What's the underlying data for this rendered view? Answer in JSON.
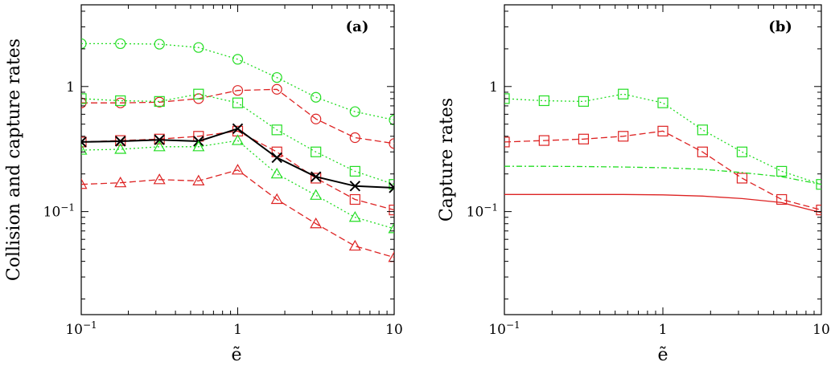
{
  "colors": {
    "green": "#22dd22",
    "red": "#dd2222",
    "black": "#000000"
  },
  "chart_data": [
    {
      "type": "line",
      "panel_label": "(a)",
      "xlabel": "ẽ",
      "ylabel": "Collision and capture rates",
      "xscale": "log",
      "yscale": "log",
      "xlim": [
        0.1,
        10
      ],
      "ylim": [
        0.015,
        4.5
      ],
      "xticks": [
        {
          "value": 0.1,
          "base": "10",
          "exp": "−1"
        },
        {
          "value": 1,
          "text": "1"
        },
        {
          "value": 10,
          "text": "10"
        }
      ],
      "yticks": [
        {
          "value": 1,
          "text": "1"
        },
        {
          "value": 0.1,
          "base": "10",
          "exp": "−1"
        }
      ],
      "x": [
        0.1,
        0.178,
        0.316,
        0.562,
        1,
        1.78,
        3.16,
        5.62,
        10
      ],
      "series": [
        {
          "name": "green-circle",
          "color": "green",
          "dash": "dotted",
          "marker": "circle",
          "values": [
            2.2,
            2.2,
            2.18,
            2.05,
            1.65,
            1.18,
            0.82,
            0.63,
            0.54
          ]
        },
        {
          "name": "red-circle",
          "color": "red",
          "dash": "dashed",
          "marker": "circle",
          "values": [
            0.74,
            0.74,
            0.75,
            0.8,
            0.93,
            0.95,
            0.55,
            0.39,
            0.35
          ]
        },
        {
          "name": "green-square",
          "color": "green",
          "dash": "dotted",
          "marker": "square",
          "values": [
            0.8,
            0.77,
            0.76,
            0.87,
            0.74,
            0.45,
            0.3,
            0.21,
            0.165
          ]
        },
        {
          "name": "red-square",
          "color": "red",
          "dash": "dashed",
          "marker": "square",
          "values": [
            0.36,
            0.37,
            0.38,
            0.4,
            0.44,
            0.3,
            0.185,
            0.125,
            0.103
          ]
        },
        {
          "name": "black-cross",
          "color": "black",
          "dash": "solid",
          "marker": "cross",
          "values": [
            0.36,
            0.365,
            0.375,
            0.365,
            0.46,
            0.27,
            0.19,
            0.16,
            0.155
          ]
        },
        {
          "name": "green-triangle",
          "color": "green",
          "dash": "dotted",
          "marker": "triangle",
          "values": [
            0.31,
            0.315,
            0.33,
            0.33,
            0.37,
            0.2,
            0.135,
            0.09,
            0.073
          ]
        },
        {
          "name": "red-triangle",
          "color": "red",
          "dash": "dashed",
          "marker": "triangle",
          "values": [
            0.165,
            0.17,
            0.18,
            0.176,
            0.215,
            0.125,
            0.08,
            0.053,
            0.043
          ]
        }
      ]
    },
    {
      "type": "line",
      "panel_label": "(b)",
      "xlabel": "ẽ",
      "ylabel": "Capture rates",
      "xscale": "log",
      "yscale": "log",
      "xlim": [
        0.1,
        10
      ],
      "ylim": [
        0.015,
        4.5
      ],
      "xticks": [
        {
          "value": 0.1,
          "base": "10",
          "exp": "−1"
        },
        {
          "value": 1,
          "text": "1"
        },
        {
          "value": 10,
          "text": "10"
        }
      ],
      "yticks": [
        {
          "value": 1,
          "text": "1"
        },
        {
          "value": 0.1,
          "base": "10",
          "exp": "−1"
        }
      ],
      "x": [
        0.1,
        0.178,
        0.316,
        0.562,
        1,
        1.78,
        3.16,
        5.62,
        10
      ],
      "series": [
        {
          "name": "green-square",
          "color": "green",
          "dash": "dotted",
          "marker": "square",
          "values": [
            0.8,
            0.77,
            0.76,
            0.87,
            0.74,
            0.45,
            0.3,
            0.21,
            0.165
          ]
        },
        {
          "name": "red-square",
          "color": "red",
          "dash": "dashed",
          "marker": "square",
          "values": [
            0.36,
            0.37,
            0.38,
            0.4,
            0.44,
            0.3,
            0.185,
            0.125,
            0.103
          ]
        },
        {
          "name": "green-theory",
          "color": "green",
          "dash": "dashdot",
          "marker": "none",
          "x": [
            0.1,
            0.178,
            0.316,
            0.562,
            1,
            1.78,
            3.16,
            5.62,
            10
          ],
          "values": [
            0.23,
            0.23,
            0.229,
            0.227,
            0.224,
            0.218,
            0.205,
            0.19,
            0.165
          ]
        },
        {
          "name": "red-theory",
          "color": "red",
          "dash": "solid",
          "marker": "none",
          "x": [
            0.1,
            0.178,
            0.316,
            0.562,
            1,
            1.78,
            3.16,
            5.62,
            10
          ],
          "values": [
            0.137,
            0.137,
            0.137,
            0.137,
            0.136,
            0.133,
            0.127,
            0.118,
            0.098
          ]
        }
      ]
    }
  ]
}
